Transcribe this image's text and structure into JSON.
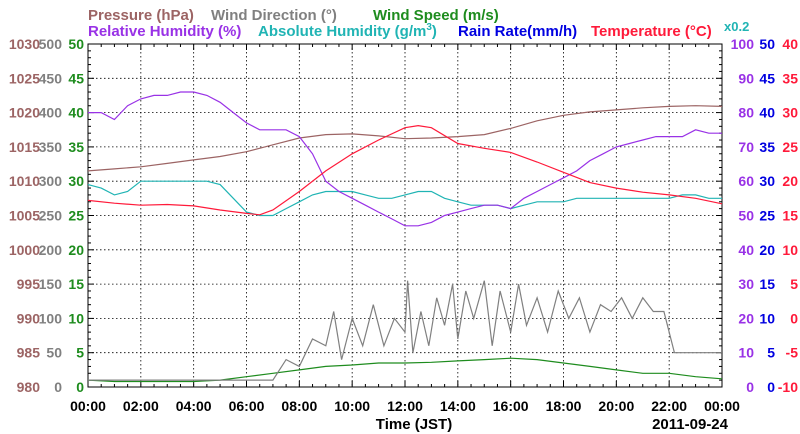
{
  "legend": {
    "pressure": {
      "label": "Pressure (hPa)",
      "color": "#9c6464"
    },
    "wind_dir": {
      "label": "Wind Direction (°)",
      "color": "#808080"
    },
    "wind_speed": {
      "label": "Wind Speed (m/s)",
      "color": "#1e8c1e"
    },
    "rel_hum": {
      "label": "Relative Humidity (%)",
      "color": "#9932e6"
    },
    "abs_hum": {
      "label": "Absolute Humidity (g/m",
      "sup": "3",
      "close": ")",
      "color": "#20b4b4"
    },
    "rain": {
      "label": "Rain Rate(mm/h)",
      "color": "#0000e0"
    },
    "temp": {
      "label": "Temperature (°C)",
      "color": "#ff1a3a"
    },
    "rain_scale": {
      "label": "x0.2",
      "color": "#20b4b4"
    }
  },
  "chart_data": {
    "type": "line",
    "xlabel": "Time (JST)",
    "date": "2011-09-24",
    "x_ticks": [
      "00:00",
      "02:00",
      "04:00",
      "06:00",
      "08:00",
      "10:00",
      "12:00",
      "14:00",
      "16:00",
      "18:00",
      "20:00",
      "22:00",
      "00:00"
    ],
    "xlim_hours": [
      0,
      24
    ],
    "grid": true,
    "axes": {
      "pressure": {
        "unit": "hPa",
        "range": [
          980,
          1030
        ],
        "ticks": [
          "1030",
          "1025",
          "1020",
          "1015",
          "1010",
          "1005",
          "1000",
          "995",
          "990",
          "985",
          "980"
        ]
      },
      "wind_direction": {
        "unit": "°",
        "range": [
          0,
          500
        ],
        "ticks": [
          "500",
          "450",
          "400",
          "350",
          "300",
          "250",
          "200",
          "150",
          "100",
          "50",
          "0"
        ]
      },
      "wind_speed": {
        "unit": "m/s",
        "range": [
          0,
          50
        ],
        "ticks": [
          "50",
          "45",
          "40",
          "35",
          "30",
          "25",
          "20",
          "15",
          "10",
          "5",
          "0"
        ]
      },
      "relative_humidity": {
        "unit": "%",
        "range": [
          0,
          100
        ],
        "ticks": [
          "100",
          "90",
          "80",
          "70",
          "60",
          "50",
          "40",
          "30",
          "20",
          "10",
          "0"
        ]
      },
      "rain_rate": {
        "unit": "mm/h",
        "range": [
          0,
          50
        ],
        "ticks": [
          "50",
          "45",
          "40",
          "35",
          "30",
          "25",
          "20",
          "15",
          "10",
          "5",
          "0"
        ]
      },
      "temperature": {
        "unit": "°C",
        "range": [
          -10,
          40
        ],
        "ticks": [
          "40",
          "35",
          "30",
          "25",
          "20",
          "15",
          "10",
          "5",
          "0",
          "-5",
          "-10"
        ]
      }
    },
    "series": [
      {
        "name": "Pressure (hPa)",
        "axis": "pressure",
        "color": "#9c6464",
        "x": [
          0,
          1,
          2,
          3,
          4,
          5,
          6,
          7,
          8,
          9,
          10,
          11,
          12,
          13,
          14,
          15,
          16,
          17,
          18,
          19,
          20,
          21,
          22,
          23,
          24
        ],
        "y": [
          1011.5,
          1011.8,
          1012.1,
          1012.6,
          1013.1,
          1013.6,
          1014.3,
          1015.3,
          1016.3,
          1016.8,
          1016.9,
          1016.6,
          1016.2,
          1016.3,
          1016.5,
          1016.8,
          1017.7,
          1018.8,
          1019.6,
          1020.1,
          1020.4,
          1020.7,
          1020.9,
          1021.0,
          1020.9
        ]
      },
      {
        "name": "Relative Humidity (%)",
        "axis": "relative_humidity",
        "color": "#9932e6",
        "x": [
          0,
          0.5,
          1,
          1.5,
          2,
          2.5,
          3,
          3.5,
          4,
          4.5,
          5,
          5.5,
          6,
          6.5,
          7,
          7.5,
          8,
          8.5,
          9,
          9.5,
          10,
          10.5,
          11,
          11.5,
          12,
          12.5,
          13,
          13.5,
          14,
          14.5,
          15,
          15.5,
          16,
          16.5,
          17,
          17.5,
          18,
          18.5,
          19,
          19.5,
          20,
          20.5,
          21,
          21.5,
          22,
          22.5,
          23,
          23.5,
          24
        ],
        "y": [
          80,
          80,
          78,
          82,
          84,
          85,
          85,
          86,
          86,
          85,
          83,
          80,
          77,
          75,
          75,
          75,
          73,
          68,
          60,
          57,
          55,
          53,
          51,
          49,
          47,
          47,
          48,
          50,
          51,
          52,
          53,
          53,
          52,
          55,
          57,
          59,
          61,
          63,
          66,
          68,
          70,
          71,
          72,
          73,
          73,
          73,
          75,
          74,
          74
        ]
      },
      {
        "name": "Absolute Humidity (g/m3)",
        "axis": "wind_speed",
        "color": "#20b4b4",
        "x": [
          0,
          0.5,
          1,
          1.5,
          2,
          2.5,
          3,
          3.5,
          4,
          4.5,
          5,
          5.5,
          6,
          6.5,
          7,
          7.5,
          8,
          8.5,
          9,
          9.5,
          10,
          10.5,
          11,
          11.5,
          12,
          12.5,
          13,
          13.5,
          14,
          14.5,
          15,
          15.5,
          16,
          16.5,
          17,
          17.5,
          18,
          18.5,
          19,
          19.5,
          20,
          20.5,
          21,
          21.5,
          22,
          22.5,
          23,
          23.5,
          24
        ],
        "y": [
          29.5,
          29,
          28,
          28.5,
          30,
          30,
          30,
          30,
          30,
          30,
          29.5,
          27.5,
          25.5,
          25,
          25,
          26,
          27,
          28,
          28.5,
          28.5,
          28.5,
          28,
          27.5,
          27.5,
          28,
          28.5,
          28.5,
          27.5,
          27,
          26.5,
          26.5,
          26.5,
          26,
          26.5,
          27,
          27,
          27,
          27.5,
          27.5,
          27.5,
          27.5,
          27.5,
          27.5,
          27.5,
          27.5,
          28,
          28,
          27.5,
          27.5
        ]
      },
      {
        "name": "Temperature (°C)",
        "axis": "temperature",
        "color": "#ff1a3a",
        "x": [
          0,
          1,
          2,
          3,
          4,
          5,
          6,
          6.5,
          7,
          8,
          9,
          10,
          11,
          12,
          12.5,
          13,
          14,
          15,
          16,
          17,
          18,
          19,
          20,
          21,
          22,
          23,
          24
        ],
        "y": [
          17.2,
          16.8,
          16.5,
          16.6,
          16.4,
          15.8,
          15.3,
          15.1,
          15.8,
          18.5,
          21.5,
          24,
          26,
          27.8,
          28.1,
          27.8,
          25.5,
          24.8,
          24.2,
          22.8,
          21.3,
          19.8,
          19,
          18.4,
          18,
          17.5,
          16.7
        ]
      },
      {
        "name": "Wind Direction (°)",
        "axis": "wind_direction",
        "color": "#808080",
        "x": [
          0,
          6.5,
          7,
          7.5,
          8,
          8.5,
          9,
          9.3,
          9.6,
          10,
          10.4,
          10.8,
          11.2,
          11.6,
          12,
          12.1,
          12.3,
          12.6,
          12.9,
          13.2,
          13.5,
          13.8,
          14,
          14.3,
          14.6,
          15,
          15.3,
          15.6,
          16,
          16.3,
          16.6,
          17,
          17.4,
          17.8,
          18.2,
          18.6,
          19,
          19.4,
          19.8,
          20.2,
          20.6,
          21,
          21.4,
          21.8,
          22.2,
          22.6,
          23,
          23.4,
          23.8,
          24
        ],
        "y": [
          10,
          10,
          10,
          40,
          30,
          70,
          60,
          110,
          40,
          100,
          60,
          120,
          60,
          100,
          80,
          155,
          50,
          110,
          60,
          130,
          90,
          150,
          70,
          140,
          100,
          155,
          60,
          140,
          80,
          150,
          90,
          130,
          80,
          140,
          100,
          130,
          80,
          120,
          110,
          130,
          100,
          130,
          110,
          110,
          50,
          50,
          50,
          50,
          50,
          50
        ]
      },
      {
        "name": "Wind Speed (m/s)",
        "axis": "wind_speed",
        "color": "#1e8c1e",
        "x": [
          0,
          1,
          2,
          3,
          4,
          5,
          6,
          7,
          8,
          9,
          10,
          11,
          12,
          13,
          14,
          15,
          16,
          17,
          18,
          19,
          20,
          21,
          22,
          23,
          24
        ],
        "y": [
          1,
          0.8,
          0.8,
          0.8,
          0.8,
          1,
          1.5,
          2,
          2.5,
          3,
          3.2,
          3.5,
          3.5,
          3.6,
          3.8,
          4,
          4.2,
          4,
          3.5,
          3,
          2.5,
          2,
          2,
          1.5,
          1.2
        ]
      }
    ]
  }
}
